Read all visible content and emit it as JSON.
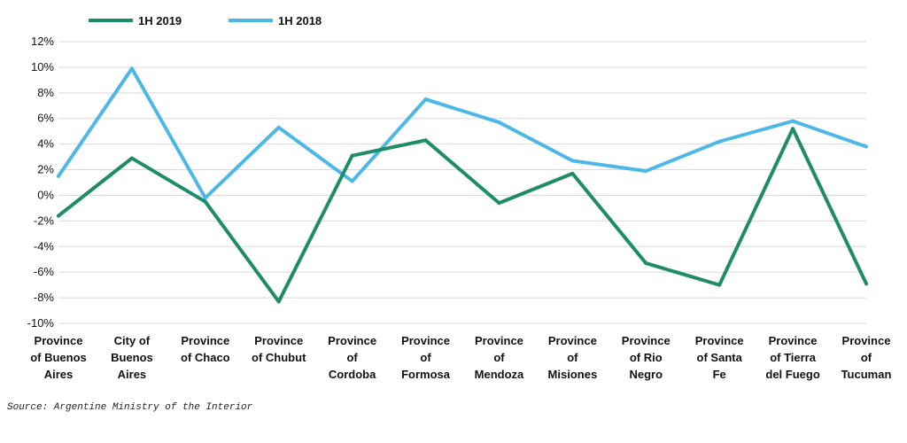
{
  "chart_data": {
    "type": "line",
    "categories": [
      "Province of Buenos Aires",
      "City of Buenos Aires",
      "Province of Chaco",
      "Province of Chubut",
      "Province of Cordoba",
      "Province of Formosa",
      "Province of Mendoza",
      "Province of Misiones",
      "Province of Rio Negro",
      "Province of Santa Fe",
      "Province of Tierra del Fuego",
      "Province of Tucuman"
    ],
    "category_lines": [
      [
        "Province",
        "of Buenos",
        "Aires"
      ],
      [
        "City of",
        "Buenos",
        "Aires"
      ],
      [
        "Province",
        "of Chaco"
      ],
      [
        "Province",
        "of Chubut"
      ],
      [
        "Province",
        "of",
        "Cordoba"
      ],
      [
        "Province",
        "of",
        "Formosa"
      ],
      [
        "Province",
        "of",
        "Mendoza"
      ],
      [
        "Province",
        "of",
        "Misiones"
      ],
      [
        "Province",
        "of Rio",
        "Negro"
      ],
      [
        "Province",
        "of Santa",
        "Fe"
      ],
      [
        "Province",
        "of Tierra",
        "del Fuego"
      ],
      [
        "Province",
        "of",
        "Tucuman"
      ]
    ],
    "series": [
      {
        "name": "1H 2019",
        "color": "#1e8c69",
        "values": [
          -1.6,
          2.9,
          -0.5,
          -8.3,
          3.1,
          4.3,
          -0.6,
          1.7,
          -5.3,
          -7.0,
          5.2,
          -6.9
        ]
      },
      {
        "name": "1H 2018",
        "color": "#4db8e6",
        "values": [
          1.5,
          9.9,
          -0.2,
          5.3,
          1.1,
          7.5,
          5.7,
          2.7,
          1.9,
          4.2,
          5.8,
          3.8
        ]
      }
    ],
    "yticks": [
      "12%",
      "10%",
      "8%",
      "6%",
      "4%",
      "2%",
      "0%",
      "-2%",
      "-4%",
      "-6%",
      "-8%",
      "-10%"
    ],
    "ylim": [
      -10,
      12
    ],
    "grid": true,
    "legend_position": "top-left"
  },
  "source_text": "Source: Argentine Ministry of the Interior"
}
